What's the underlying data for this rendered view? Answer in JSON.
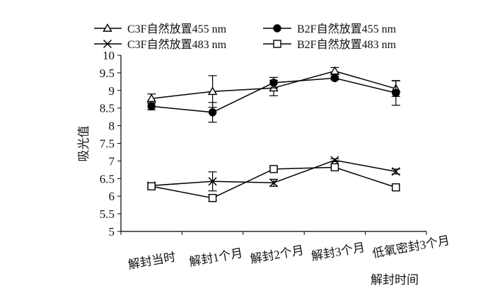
{
  "chart_data": {
    "type": "line",
    "title": "",
    "xlabel": "解封时间",
    "ylabel": "吸光值",
    "categories": [
      "解封当时",
      "解封1个月",
      "解封2个月",
      "解封3个月",
      "低氧密封3个月"
    ],
    "ylim": [
      5,
      10
    ],
    "yticks": [
      "5",
      "5.5",
      "6",
      "6.5",
      "7",
      "7.5",
      "8",
      "8.5",
      "9",
      "9.5",
      "10"
    ],
    "grid": false,
    "legend_position": "top",
    "series": [
      {
        "name": "C3F自然放置455 nm",
        "marker": "open-triangle",
        "values": [
          8.77,
          8.97,
          9.07,
          9.55,
          9.05
        ],
        "errors": [
          0.13,
          0.45,
          0.22,
          0.1,
          0.22
        ]
      },
      {
        "name": "B2F自然放置455 nm",
        "marker": "filled-circle",
        "values": [
          8.55,
          8.38,
          9.22,
          9.35,
          8.93
        ],
        "errors": [
          0.1,
          0.28,
          0.15,
          0.05,
          0.35
        ]
      },
      {
        "name": "C3F自然放置483 nm",
        "marker": "x",
        "values": [
          6.3,
          6.42,
          6.38,
          7.02,
          6.7
        ],
        "errors": [
          0.06,
          0.27,
          0.1,
          0.04,
          0.07
        ]
      },
      {
        "name": "B2F自然放置483 nm",
        "marker": "open-square",
        "values": [
          6.28,
          5.95,
          6.77,
          6.82,
          6.25
        ],
        "errors": [
          0.05,
          0.1,
          0.06,
          0.05,
          0.06
        ]
      }
    ]
  }
}
